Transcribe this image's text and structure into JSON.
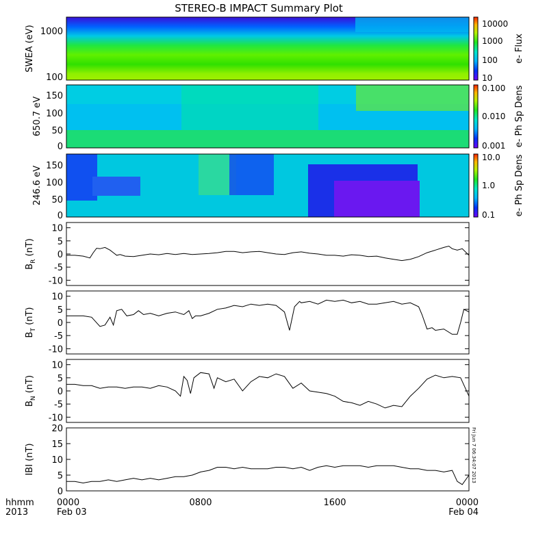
{
  "title": "STEREO-B IMPACT Summary Plot",
  "x_axis": {
    "row1_label": "hhmm",
    "row2_label": "2013",
    "ticks": [
      {
        "hour": 0,
        "time": "0000",
        "date": "Feb 03"
      },
      {
        "hour": 8,
        "time": "0800",
        "date": ""
      },
      {
        "hour": 16,
        "time": "1600",
        "date": ""
      },
      {
        "hour": 24,
        "time": "0000",
        "date": "Feb 04"
      }
    ],
    "range_hours": [
      0,
      24
    ]
  },
  "timestamp_label": "Fri Jun  7 06:34:07 2013",
  "chart_data": [
    {
      "type": "heatmap",
      "id": "swea",
      "ylabel": "SWEA (eV)",
      "yscale": "log",
      "ylim": [
        100,
        2000
      ],
      "yticks": [
        "1000",
        "100"
      ],
      "colorbar": {
        "label": "e- Flux",
        "scale": "log",
        "ticks": [
          "10000",
          "1000",
          "100",
          "10"
        ]
      }
    },
    {
      "type": "heatmap",
      "id": "pad650",
      "ylabel": "650.7 eV",
      "ylim": [
        0,
        180
      ],
      "yticks": [
        "150",
        "100",
        "50",
        "0"
      ],
      "colorbar": {
        "label": "e- Ph Sp Dens",
        "scale": "log",
        "ticks": [
          "0.100",
          "0.010",
          "0.001"
        ]
      }
    },
    {
      "type": "heatmap",
      "id": "pad246",
      "ylabel": "246.6 eV",
      "ylim": [
        0,
        180
      ],
      "yticks": [
        "150",
        "100",
        "50",
        "0"
      ],
      "colorbar": {
        "label": "e- Ph Sp Dens",
        "scale": "log",
        "ticks": [
          "10.0",
          "1.0",
          "0.1"
        ]
      }
    },
    {
      "type": "line",
      "id": "br",
      "ylabel_main": "B",
      "ylabel_sub": "R",
      "ylabel_unit": "(nT)",
      "ylim": [
        -12,
        12
      ],
      "yticks": [
        "10",
        "5",
        "0",
        "-5",
        "-10"
      ],
      "x": [
        0,
        0.5,
        1,
        1.4,
        1.6,
        1.8,
        2,
        2.3,
        2.6,
        2.8,
        3,
        3.2,
        3.5,
        4,
        4.5,
        5,
        5.5,
        6,
        6.5,
        7,
        7.5,
        8,
        8.5,
        9,
        9.5,
        10,
        10.5,
        11,
        11.5,
        12,
        12.5,
        13,
        13.5,
        14,
        14.5,
        15,
        15.5,
        16,
        16.5,
        17,
        17.5,
        18,
        18.5,
        19,
        19.5,
        20,
        20.5,
        21,
        21.5,
        22,
        22.5,
        22.8,
        23,
        23.3,
        23.6,
        24
      ],
      "y": [
        -0.5,
        -0.5,
        -0.8,
        -1.5,
        0.5,
        2.2,
        2.0,
        2.5,
        1.5,
        0.5,
        -0.5,
        -0.2,
        -0.8,
        -1.0,
        -0.5,
        0.0,
        -0.3,
        0.2,
        -0.2,
        0.2,
        -0.2,
        0.0,
        0.2,
        0.5,
        1.0,
        1.0,
        0.5,
        0.8,
        1.0,
        0.5,
        0.0,
        -0.2,
        0.5,
        0.8,
        0.3,
        0.0,
        -0.5,
        -0.5,
        -0.8,
        -0.3,
        -0.5,
        -1.0,
        -0.8,
        -1.5,
        -2.0,
        -2.5,
        -2.0,
        -1.0,
        0.5,
        1.5,
        2.5,
        3.0,
        2.0,
        1.5,
        2.0,
        -0.5
      ]
    },
    {
      "type": "line",
      "id": "bt",
      "ylabel_main": "B",
      "ylabel_sub": "T",
      "ylabel_unit": "(nT)",
      "ylim": [
        -12,
        12
      ],
      "yticks": [
        "10",
        "5",
        "0",
        "-5",
        "-10"
      ],
      "x": [
        0,
        0.5,
        1,
        1.5,
        2,
        2.3,
        2.6,
        2.8,
        3,
        3.3,
        3.6,
        4,
        4.3,
        4.6,
        5,
        5.5,
        6,
        6.5,
        7,
        7.3,
        7.5,
        7.7,
        8,
        8.5,
        9,
        9.5,
        10,
        10.5,
        11,
        11.5,
        12,
        12.5,
        13,
        13.3,
        13.6,
        13.9,
        14,
        14.5,
        15,
        15.5,
        16,
        16.5,
        17,
        17.5,
        18,
        18.5,
        19,
        19.5,
        20,
        20.5,
        21,
        21.2,
        21.5,
        21.8,
        22,
        22.5,
        23,
        23.3,
        23.5,
        23.7,
        24
      ],
      "y": [
        2.5,
        2.5,
        2.5,
        2.0,
        -1.5,
        -1.0,
        2.0,
        -1.0,
        4.5,
        5.0,
        2.5,
        3.0,
        4.5,
        3.0,
        3.5,
        2.5,
        3.5,
        4.0,
        3.0,
        4.5,
        1.5,
        2.5,
        2.5,
        3.5,
        5.0,
        5.5,
        6.5,
        6.0,
        7.0,
        6.5,
        7.0,
        6.5,
        4.0,
        -3.0,
        6.0,
        8.0,
        7.5,
        8.0,
        7.0,
        8.5,
        8.0,
        8.5,
        7.5,
        8.0,
        7.0,
        7.0,
        7.5,
        8.0,
        7.0,
        7.5,
        6.0,
        3.0,
        -2.5,
        -2.0,
        -3.0,
        -2.5,
        -4.5,
        -4.5,
        0.0,
        5.0,
        4.0
      ]
    },
    {
      "type": "line",
      "id": "bn",
      "ylabel_main": "B",
      "ylabel_sub": "N",
      "ylabel_unit": "(nT)",
      "ylim": [
        -12,
        12
      ],
      "yticks": [
        "10",
        "5",
        "0",
        "-5",
        "-10"
      ],
      "x": [
        0,
        0.5,
        1,
        1.5,
        2,
        2.5,
        3,
        3.5,
        4,
        4.5,
        5,
        5.5,
        6,
        6.5,
        6.8,
        7.0,
        7.2,
        7.4,
        7.6,
        8,
        8.5,
        8.8,
        9,
        9.5,
        10,
        10.5,
        11,
        11.5,
        12,
        12.5,
        13,
        13.5,
        14,
        14.5,
        15,
        15.5,
        16,
        16.5,
        17,
        17.5,
        18,
        18.5,
        19,
        19.5,
        20,
        20.5,
        21,
        21.5,
        22,
        22.5,
        23,
        23.5,
        24
      ],
      "y": [
        2.5,
        2.5,
        2.0,
        2.0,
        1.0,
        1.5,
        1.5,
        1.0,
        1.5,
        1.5,
        1.0,
        2.0,
        1.5,
        0.0,
        -2.0,
        5.5,
        4.0,
        -1.0,
        5.0,
        7.0,
        6.5,
        1.0,
        5.0,
        3.5,
        4.5,
        0.0,
        3.5,
        5.5,
        5.0,
        6.5,
        5.5,
        1.0,
        3.0,
        0.0,
        -0.5,
        -1.0,
        -2.0,
        -4.0,
        -4.5,
        -5.5,
        -4.0,
        -5.0,
        -6.5,
        -5.5,
        -6.0,
        -2.0,
        1.0,
        4.5,
        6.0,
        5.0,
        5.5,
        5.0,
        -2.0
      ]
    },
    {
      "type": "line",
      "id": "bmag",
      "ylabel_main": "IBI",
      "ylabel_sub": "",
      "ylabel_unit": "(nT)",
      "ylim": [
        0,
        20
      ],
      "yticks": [
        "20",
        "15",
        "10",
        "5",
        "0"
      ],
      "x": [
        0,
        0.5,
        1,
        1.5,
        2,
        2.5,
        3,
        3.5,
        4,
        4.5,
        5,
        5.5,
        6,
        6.5,
        7,
        7.5,
        8,
        8.5,
        9,
        9.5,
        10,
        10.5,
        11,
        11.5,
        12,
        12.5,
        13,
        13.5,
        14,
        14.5,
        15,
        15.5,
        16,
        16.5,
        17,
        17.5,
        18,
        18.5,
        19,
        19.5,
        20,
        20.5,
        21,
        21.5,
        22,
        22.5,
        23,
        23.3,
        23.6,
        24
      ],
      "y": [
        3.0,
        3.0,
        2.5,
        3.0,
        3.0,
        3.5,
        3.0,
        3.5,
        4.0,
        3.5,
        4.0,
        3.5,
        4.0,
        4.5,
        4.5,
        5.0,
        6.0,
        6.5,
        7.5,
        7.5,
        7.0,
        7.5,
        7.0,
        7.0,
        7.0,
        7.5,
        7.5,
        7.0,
        7.5,
        6.5,
        7.5,
        8.0,
        7.5,
        8.0,
        8.0,
        8.0,
        7.5,
        8.0,
        8.0,
        8.0,
        7.5,
        7.0,
        7.0,
        6.5,
        6.5,
        6.0,
        6.5,
        3.0,
        2.0,
        5.0
      ]
    }
  ]
}
